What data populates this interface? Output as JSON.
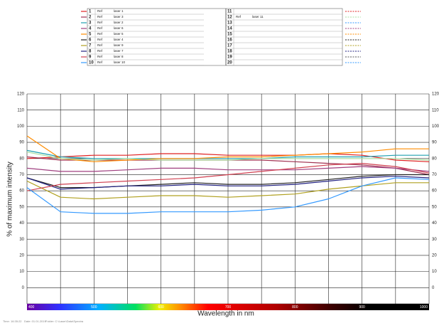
{
  "chart_data": {
    "type": "line",
    "y_label": "% of maximum intensity",
    "x_label": "Wavelength in nm",
    "x": [
      400,
      450,
      500,
      550,
      600,
      650,
      700,
      750,
      800,
      850,
      900,
      950,
      1000
    ],
    "xlim": [
      400,
      1000
    ],
    "xticks": [
      400,
      500,
      600,
      700,
      800,
      900,
      1000
    ],
    "minor_xticks": [
      450,
      550,
      650,
      750,
      850,
      950
    ],
    "ylim": [
      -10,
      120
    ],
    "yticks": [
      0,
      10,
      20,
      30,
      40,
      50,
      60,
      70,
      80,
      90,
      100,
      110,
      120
    ],
    "grid": true,
    "series": [
      {
        "name": "laser 1",
        "color": "#e02020",
        "values": [
          80,
          81,
          82,
          82,
          83,
          83,
          82,
          82,
          82,
          83,
          82,
          79,
          78
        ]
      },
      {
        "name": "laser 3",
        "color": "#a03050",
        "values": [
          81,
          79,
          79,
          79,
          79,
          79,
          79,
          79,
          78,
          77,
          76,
          74,
          70
        ]
      },
      {
        "name": "laser 2",
        "color": "#20a0b0",
        "values": [
          85,
          81,
          80,
          80,
          80,
          80,
          80,
          80,
          81,
          81,
          81,
          82,
          82
        ]
      },
      {
        "name": "laser 6",
        "color": "#a04080",
        "values": [
          74,
          72,
          72,
          73,
          74,
          74,
          73,
          73,
          73,
          74,
          75,
          74,
          72
        ]
      },
      {
        "name": "laser 5",
        "color": "#ff8c00",
        "values": [
          94,
          80,
          78,
          79,
          80,
          80,
          81,
          81,
          82,
          83,
          84,
          86,
          86
        ]
      },
      {
        "name": "laser 4",
        "color": "#222222",
        "values": [
          68,
          62,
          62,
          63,
          64,
          65,
          64,
          64,
          65,
          67,
          69,
          70,
          70
        ]
      },
      {
        "name": "laser 9",
        "color": "#b0a020",
        "values": [
          66,
          56,
          55,
          56,
          57,
          57,
          56,
          57,
          58,
          61,
          63,
          65,
          65
        ]
      },
      {
        "name": "laser 7",
        "color": "#202080",
        "values": [
          68,
          61,
          62,
          63,
          63,
          64,
          63,
          63,
          64,
          66,
          68,
          69,
          68
        ]
      },
      {
        "name": "laser 8",
        "color": "#d04050",
        "values": [
          60,
          64,
          65,
          66,
          67,
          68,
          70,
          72,
          74,
          76,
          77,
          75,
          71
        ]
      },
      {
        "name": "laser 10",
        "color": "#3399ff",
        "values": [
          62,
          47,
          46,
          46,
          47,
          47,
          47,
          48,
          50,
          55,
          63,
          68,
          67
        ]
      },
      {
        "name": "laser 11",
        "color": "#a8e0a0",
        "values": [
          84,
          80,
          79,
          80,
          79,
          79,
          79,
          80,
          80,
          80,
          80,
          80,
          79
        ]
      }
    ],
    "legend_rows": [
      {
        "number": 1,
        "ref": "Ref",
        "color": "#e02020"
      },
      {
        "number": 2,
        "ref": "Ref",
        "color": "#a03050"
      },
      {
        "number": 3,
        "ref": "Ref",
        "color": "#20a0b0"
      },
      {
        "number": 4,
        "ref": "Ref",
        "color": "#a04080"
      },
      {
        "number": 5,
        "ref": "Ref",
        "color": "#ff8c00"
      },
      {
        "number": 6,
        "ref": "Ref",
        "color": "#222222"
      },
      {
        "number": 7,
        "ref": "Ref",
        "color": "#b0a020"
      },
      {
        "number": 8,
        "ref": "Ref",
        "color": "#202080"
      },
      {
        "number": 9,
        "ref": "Ref",
        "color": "#d04050"
      },
      {
        "number": 10,
        "ref": "Ref",
        "color": "#3399ff"
      },
      {
        "number": 11,
        "color": "#e02020"
      },
      {
        "number": 12,
        "ref": "Ref",
        "color": "#a8e0a0"
      },
      {
        "number": 13,
        "color": "#3399ff"
      },
      {
        "number": 14,
        "color": "#a04080"
      },
      {
        "number": 15,
        "color": "#ff8c00"
      },
      {
        "number": 16,
        "color": "#222222"
      },
      {
        "number": 17,
        "color": "#b0a020"
      },
      {
        "number": 18,
        "color": "#202080"
      },
      {
        "number": 19,
        "color": "#555555"
      },
      {
        "number": 20,
        "color": "#3399ff"
      }
    ],
    "footer": [
      "Time: 16:35:22",
      "Date: 01.01.2019",
      "Folder: C:\\Laser\\Data\\Spectra"
    ]
  }
}
